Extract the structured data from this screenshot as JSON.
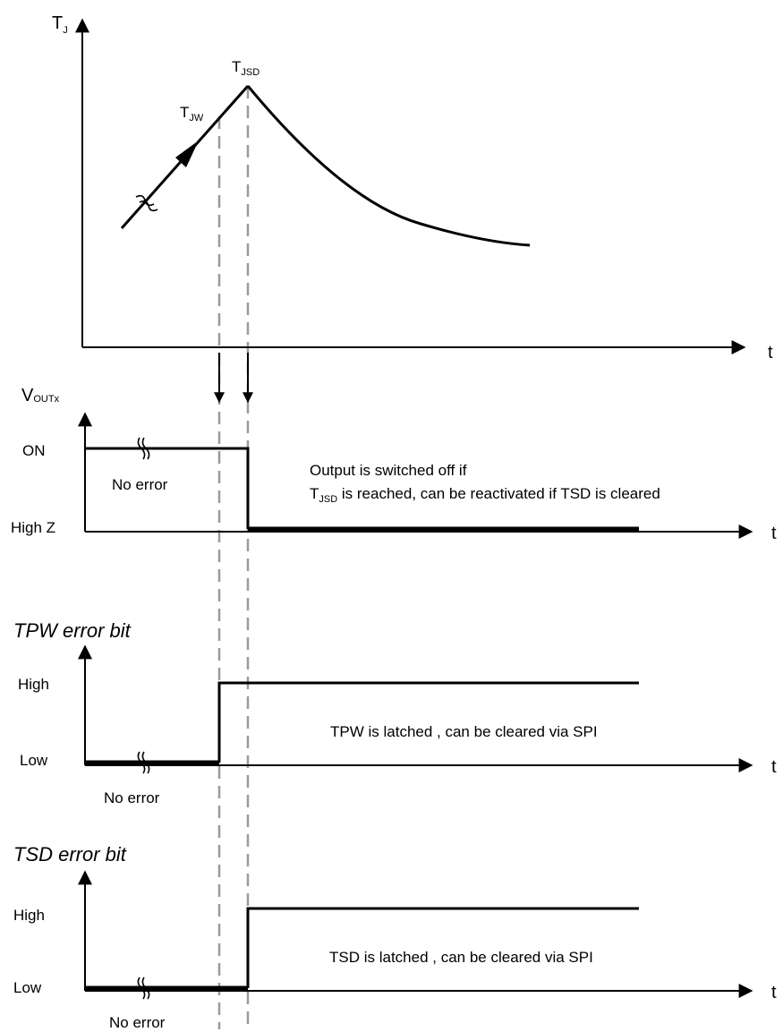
{
  "temperature_plot": {
    "y_axis_main": "T",
    "y_axis_sub": "J",
    "x_axis": "t",
    "warning_main": "T",
    "warning_sub": "JW",
    "shutdown_main": "T",
    "shutdown_sub": "JSD"
  },
  "output_plot": {
    "y_axis_main": "V",
    "y_axis_sub": "OUTx",
    "x_axis": "t",
    "level_on": "ON",
    "level_high_z": "High Z",
    "no_error_label": "No error",
    "note_line1": "Output  is switched off if",
    "note_line2_sub_main": "T",
    "note_line2_sub": "JSD",
    "note_line2_rest": " is reached, can be reactivated if TSD is cleared"
  },
  "tpw_plot": {
    "title": "TPW error bit",
    "x_axis": "t",
    "level_high": "High",
    "level_low": "Low",
    "no_error_label": "No error",
    "note": "TPW is latched  , can be cleared via SPI"
  },
  "tsd_plot": {
    "title": "TSD error bit",
    "x_axis": "t",
    "level_high": "High",
    "level_low": "Low",
    "no_error_label": "No error",
    "note": "TSD is latched  , can be cleared via SPI"
  }
}
